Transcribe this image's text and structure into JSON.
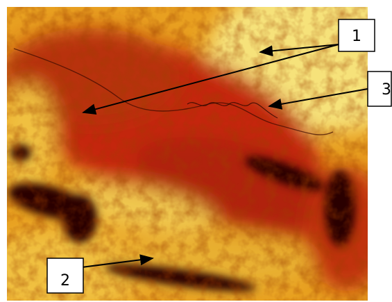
{
  "labels": [
    "1",
    "3",
    "2"
  ]
}
